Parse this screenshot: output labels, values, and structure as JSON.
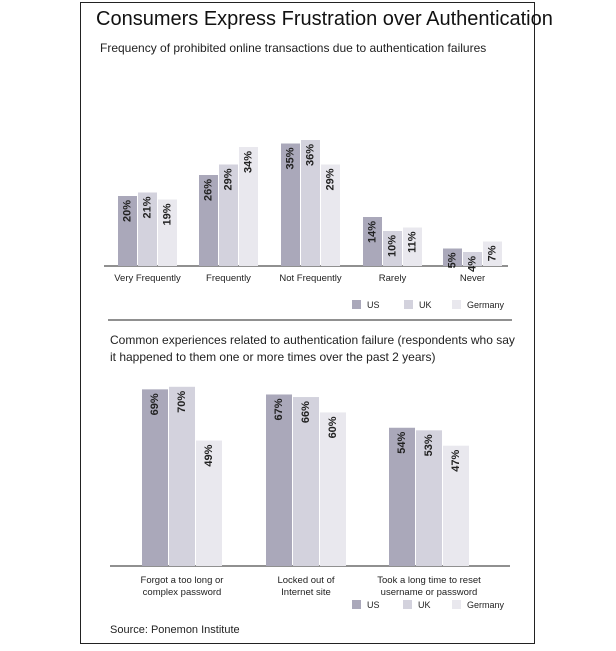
{
  "title": "Consumers Express Frustration over Authentication",
  "source": "Source: Ponemon Institute",
  "colors": {
    "US": "#aaa8ba",
    "UK": "#d3d2dd",
    "Germany": "#e9e8ee"
  },
  "chart_data": [
    {
      "type": "bar",
      "title": "Frequency of prohibited online transactions due to authentication failures",
      "categories": [
        [
          "Very Frequently"
        ],
        [
          "Frequently"
        ],
        [
          "Not Frequently"
        ],
        [
          "Rarely"
        ],
        [
          "Never"
        ]
      ],
      "series": [
        {
          "name": "US",
          "values": [
            20,
            26,
            35,
            14,
            5
          ],
          "labels": [
            "20%",
            "26%",
            "35%",
            "14%",
            "5%"
          ]
        },
        {
          "name": "UK",
          "values": [
            21,
            29,
            36,
            10,
            4
          ],
          "labels": [
            "21%",
            "29%",
            "36%",
            "10%",
            "4%"
          ]
        },
        {
          "name": "Germany",
          "values": [
            19,
            34,
            29,
            11,
            7
          ],
          "labels": [
            "19%",
            "34%",
            "29%",
            "11%",
            "7%"
          ]
        }
      ],
      "legend": [
        "US",
        "UK",
        "Germany"
      ],
      "legend_position": "bottom-right"
    },
    {
      "type": "bar",
      "title": "Common experiences related to authentication failure (respondents who say it happened to them one or more times over the past 2 years)",
      "categories": [
        [
          "Forgot a too long or",
          "complex password"
        ],
        [
          "Locked out of",
          "Internet site"
        ],
        [
          "Took a long time to reset",
          "username or password"
        ]
      ],
      "series": [
        {
          "name": "US",
          "values": [
            69,
            67,
            54
          ],
          "labels": [
            "69%",
            "67%",
            "54%"
          ]
        },
        {
          "name": "UK",
          "values": [
            70,
            66,
            53
          ],
          "labels": [
            "70%",
            "66%",
            "53%"
          ]
        },
        {
          "name": "Germany",
          "values": [
            49,
            60,
            47
          ],
          "labels": [
            "49%",
            "60%",
            "47%"
          ]
        }
      ],
      "legend": [
        "US",
        "UK",
        "Germany"
      ],
      "legend_position": "bottom-right"
    }
  ]
}
